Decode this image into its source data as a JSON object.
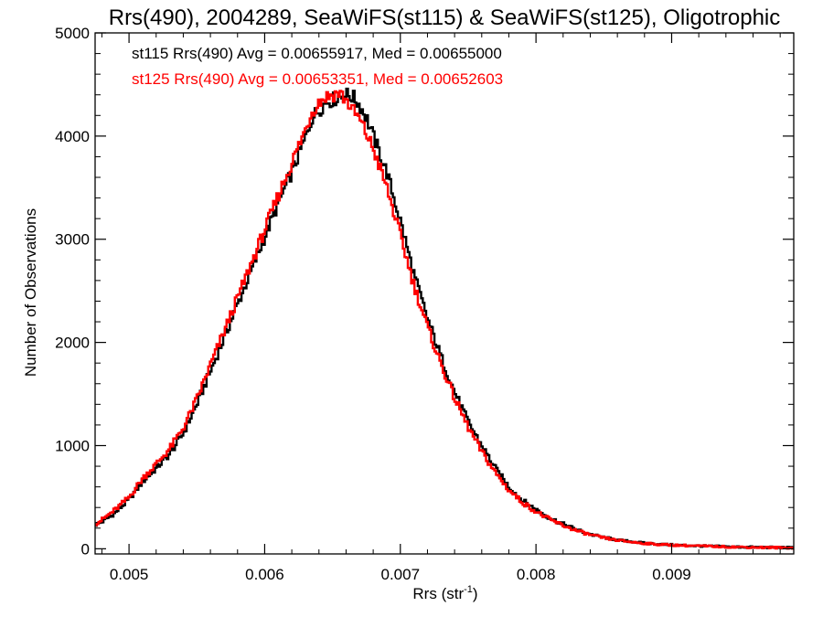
{
  "chart_data": {
    "type": "line",
    "title": "Rrs(490), 2004289, SeaWiFS(st115) & SeaWiFS(st125), Oligotrophic",
    "xlabel": "Rrs (str",
    "xlabel_sup": "-1",
    "xlabel_close": ")",
    "ylabel": "Number of Observations",
    "xlim": [
      0.00475,
      0.0099
    ],
    "ylim": [
      -50,
      5000
    ],
    "x_ticks": [
      0.005,
      0.006,
      0.007,
      0.008,
      0.009
    ],
    "x_tick_labels": [
      "0.005",
      "0.006",
      "0.007",
      "0.008",
      "0.009"
    ],
    "y_ticks": [
      0,
      1000,
      2000,
      3000,
      4000,
      5000
    ],
    "y_tick_labels": [
      "0",
      "1000",
      "2000",
      "3000",
      "4000",
      "5000"
    ],
    "grid": false,
    "step": "histogram",
    "annotations": [
      {
        "text": "st115 Rrs(490) Avg = 0.00655917, Med = 0.00655000",
        "color": "#000000"
      },
      {
        "text": "st125 Rrs(490) Avg = 0.00653351, Med = 0.00652603",
        "color": "#ff0000"
      }
    ],
    "series": [
      {
        "color": "#000000",
        "x": [
          0.00475,
          0.0048,
          0.0049,
          0.005,
          0.0051,
          0.0052,
          0.0053,
          0.0054,
          0.0055,
          0.0056,
          0.0057,
          0.0058,
          0.0059,
          0.006,
          0.0061,
          0.0062,
          0.0063,
          0.00635,
          0.0064,
          0.00645,
          0.0065,
          0.00655,
          0.0066,
          0.00665,
          0.0067,
          0.00675,
          0.0068,
          0.0069,
          0.007,
          0.0071,
          0.0072,
          0.0073,
          0.0074,
          0.0075,
          0.0076,
          0.0077,
          0.0078,
          0.0079,
          0.008,
          0.0081,
          0.0082,
          0.0083,
          0.0084,
          0.0085,
          0.0086,
          0.0087,
          0.0088,
          0.0089,
          0.009,
          0.0092,
          0.0094,
          0.0096,
          0.0099
        ],
        "values": [
          230,
          260,
          350,
          480,
          650,
          780,
          920,
          1120,
          1400,
          1720,
          2040,
          2370,
          2690,
          3020,
          3350,
          3650,
          3980,
          4180,
          4250,
          4330,
          4350,
          4380,
          4400,
          4380,
          4300,
          4180,
          4000,
          3650,
          3180,
          2660,
          2230,
          1860,
          1520,
          1230,
          1000,
          780,
          600,
          470,
          380,
          300,
          240,
          185,
          140,
          110,
          85,
          70,
          55,
          45,
          38,
          28,
          20,
          15,
          10
        ]
      },
      {
        "color": "#ff0000",
        "x": [
          0.00475,
          0.0048,
          0.0049,
          0.005,
          0.0051,
          0.0052,
          0.0053,
          0.0054,
          0.0055,
          0.0056,
          0.0057,
          0.0058,
          0.0059,
          0.006,
          0.0061,
          0.0062,
          0.0063,
          0.00635,
          0.0064,
          0.00645,
          0.0065,
          0.00655,
          0.0066,
          0.00665,
          0.0067,
          0.00675,
          0.0068,
          0.0069,
          0.007,
          0.0071,
          0.0072,
          0.0073,
          0.0074,
          0.0075,
          0.0076,
          0.0077,
          0.0078,
          0.0079,
          0.008,
          0.0081,
          0.0082,
          0.0083,
          0.0084,
          0.0085,
          0.0086,
          0.0087,
          0.0088,
          0.0089,
          0.009,
          0.0092,
          0.0094,
          0.0096,
          0.0099
        ],
        "values": [
          240,
          280,
          380,
          500,
          680,
          820,
          970,
          1170,
          1450,
          1780,
          2100,
          2430,
          2760,
          3090,
          3420,
          3740,
          4060,
          4240,
          4330,
          4380,
          4400,
          4420,
          4350,
          4250,
          4160,
          4020,
          3880,
          3500,
          3040,
          2560,
          2150,
          1790,
          1460,
          1180,
          940,
          740,
          570,
          450,
          360,
          285,
          225,
          175,
          135,
          105,
          82,
          66,
          52,
          43,
          36,
          27,
          19,
          14,
          9
        ]
      }
    ]
  }
}
